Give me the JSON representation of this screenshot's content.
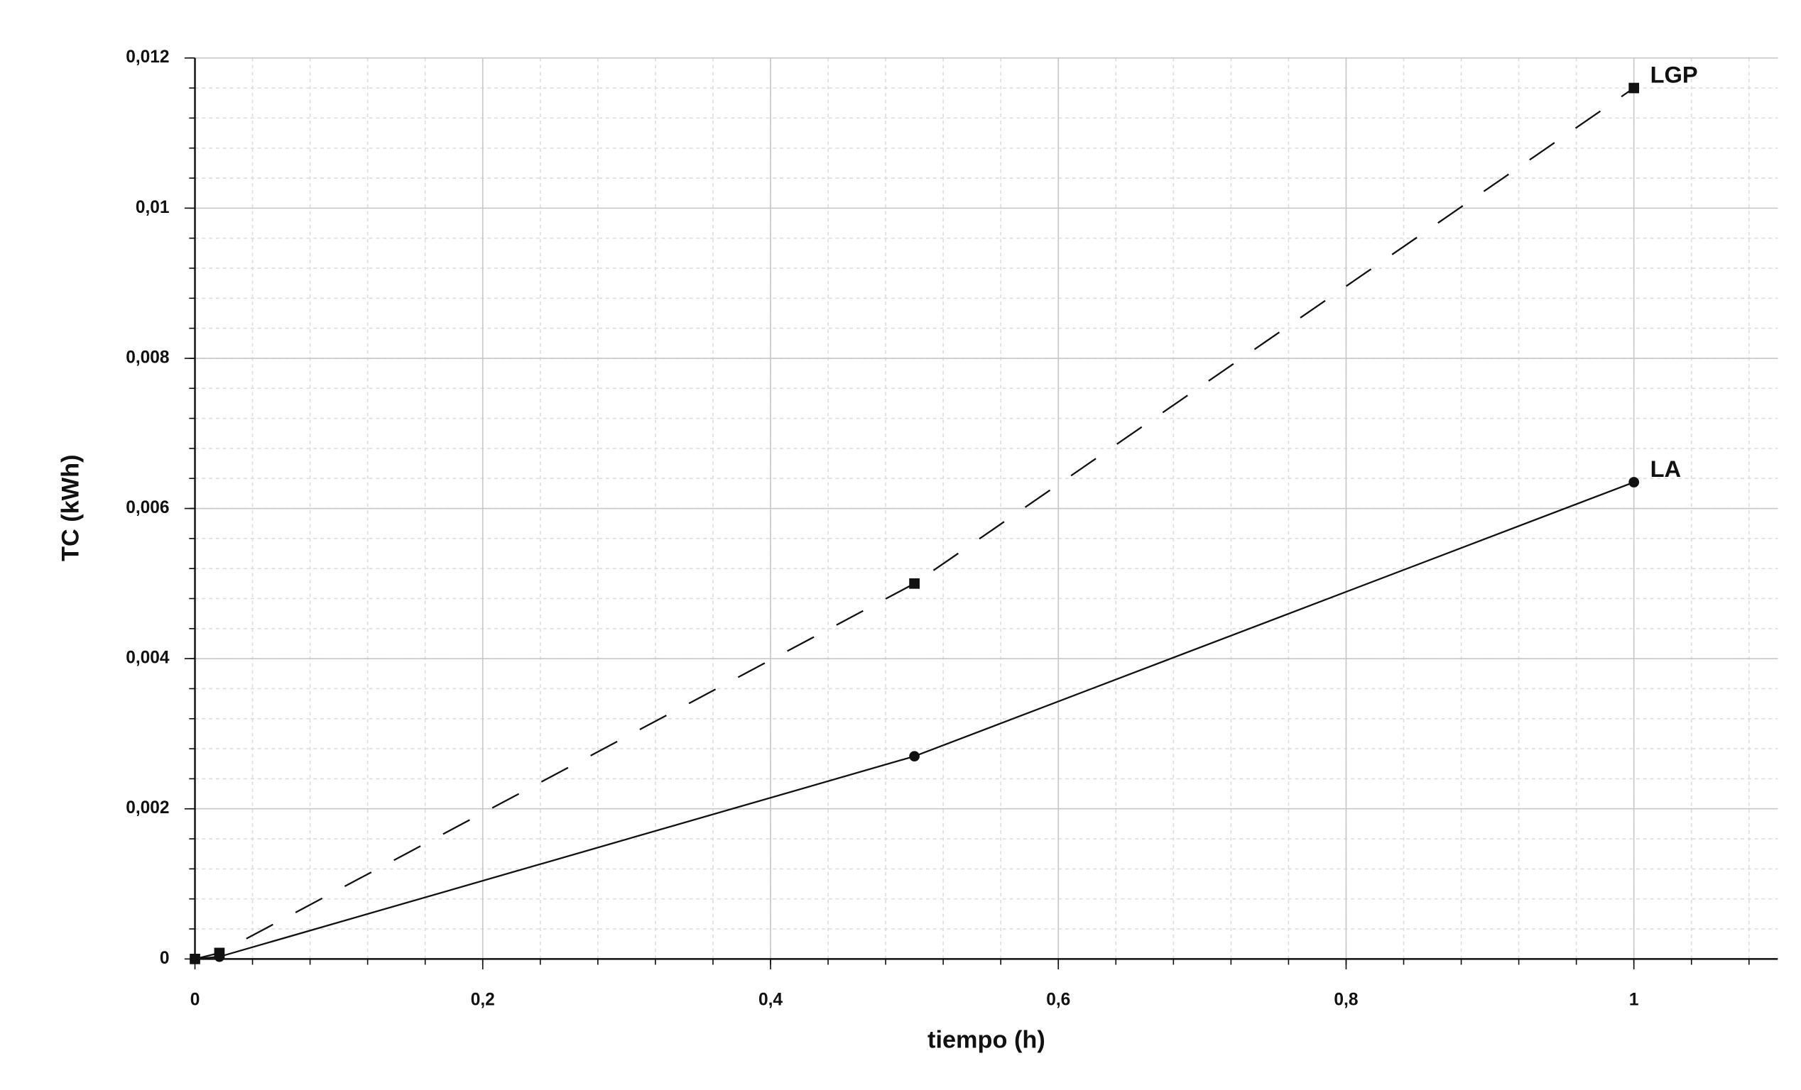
{
  "chart_data": {
    "type": "line",
    "x_label": "tiempo (h)",
    "y_label": "TC (kWh)",
    "x": [
      0,
      0.017,
      0.5,
      1
    ],
    "series": [
      {
        "name": "LGP",
        "color": "#111111",
        "line_style": "dashed",
        "marker": "square",
        "values": [
          0,
          8e-05,
          0.005,
          0.0116
        ]
      },
      {
        "name": "LA",
        "color": "#111111",
        "line_style": "solid",
        "marker": "circle",
        "values": [
          0,
          3e-05,
          0.0027,
          0.00635
        ]
      }
    ],
    "xlim": [
      0,
      1.1
    ],
    "ylim": [
      0,
      0.012
    ],
    "xticks": [
      0,
      {
        "value": 0.2,
        "label": "0,2"
      },
      {
        "value": 0.4,
        "label": "0,4"
      },
      {
        "value": 0.6,
        "label": "0,6"
      },
      {
        "value": 0.8,
        "label": "0,8"
      },
      1
    ],
    "yticks": [
      0,
      {
        "value": 0.002,
        "label": "0,002"
      },
      {
        "value": 0.004,
        "label": "0,004"
      },
      {
        "value": 0.006,
        "label": "0,006"
      },
      {
        "value": 0.008,
        "label": "0,008"
      },
      {
        "value": 0.01,
        "label": "0,01"
      },
      {
        "value": 0.012,
        "label": "0,012"
      }
    ],
    "grid": true,
    "minor_grid": true,
    "legend": "line-end"
  }
}
